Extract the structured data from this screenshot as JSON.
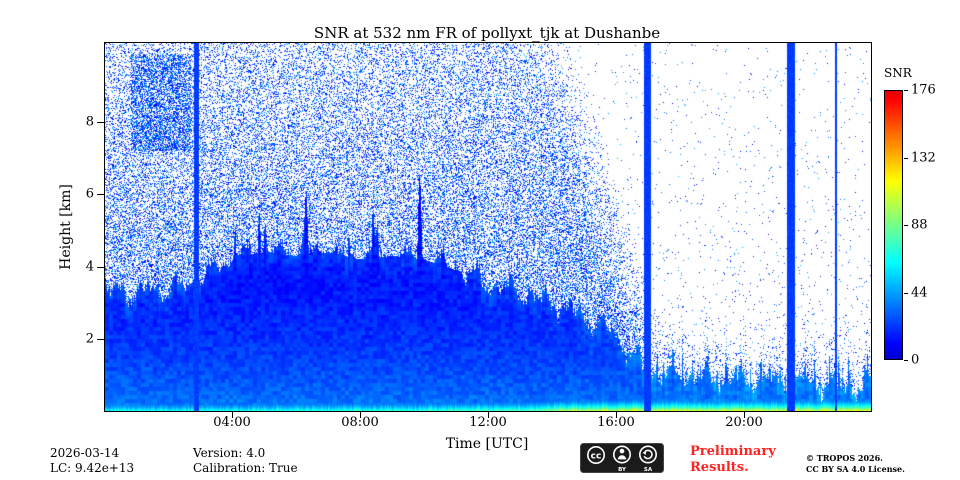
{
  "title": "SNR at 532 nm FR of pollyxt_tjk at Dushanbe",
  "axes": {
    "xlabel": "Time [UTC]",
    "ylabel": "Height [km]",
    "x_tick_labels": [
      "04:00",
      "08:00",
      "12:00",
      "16:00",
      "20:00"
    ],
    "y_tick_labels": [
      "2",
      "4",
      "6",
      "8"
    ]
  },
  "colorbar": {
    "label": "SNR",
    "tick_labels": [
      "176",
      "132",
      "88",
      "44",
      "0"
    ],
    "tick_values": [
      176,
      132,
      88,
      44,
      0
    ]
  },
  "footer": {
    "date": "2026-03-14",
    "lc": "LC: 9.42e+13",
    "version": "Version: 4.0",
    "calibration": "Calibration: True",
    "preliminary_line1": "Preliminary",
    "preliminary_line2": "Results.",
    "copyright_line1": "© TROPOS 2026.",
    "copyright_line2": "CC BY SA 4.0 License.",
    "cc_badge": {
      "cc": "cc",
      "by": "BY",
      "sa": "SA"
    }
  },
  "chart_data": {
    "type": "heatmap",
    "title": "SNR at 532 nm FR of pollyxt_tjk at Dushanbe",
    "xlabel": "Time [UTC]",
    "ylabel": "Height [km]",
    "value_label": "SNR",
    "x_range_hours": [
      0,
      24
    ],
    "y_range_km": [
      0,
      10.2
    ],
    "x_tick_hours": [
      4,
      8,
      12,
      16,
      20
    ],
    "y_tick_km": [
      2,
      4,
      6,
      8
    ],
    "value_range": [
      0,
      176
    ],
    "colorbar_ticks": [
      0,
      44,
      88,
      132,
      176
    ],
    "colormap": "jet",
    "boundary_layer_top_km": {
      "hours": [
        0,
        1,
        2,
        3,
        4,
        5,
        6,
        7,
        8,
        9,
        10,
        11,
        12,
        13,
        14,
        15,
        16,
        17,
        18,
        19,
        20,
        21,
        22,
        23,
        24
      ],
      "top_km": [
        3.3,
        3.3,
        3.4,
        3.7,
        4.3,
        4.4,
        4.3,
        4.4,
        4.2,
        4.3,
        4.2,
        3.9,
        3.6,
        3.3,
        3.0,
        2.6,
        2.1,
        1.1,
        0.95,
        0.9,
        0.85,
        0.8,
        0.75,
        0.7,
        0.7
      ]
    },
    "cloud_layer": {
      "hours": [
        4,
        11.2
      ],
      "max_top_km": 6.6
    },
    "surface_snr": {
      "hours": [
        0,
        9,
        13,
        15,
        24
      ],
      "snr": [
        66,
        74,
        85,
        108,
        112
      ]
    },
    "calibration_stripe_hours": [
      [
        2.78,
        2.95
      ],
      [
        16.9,
        17.12
      ],
      [
        21.38,
        21.62
      ],
      [
        22.86,
        22.92
      ]
    ],
    "noise": {
      "description": "Dense blue speckle noise above the aerosol layer before ~13 UTC; fades to white between ~13 and ~16.5 UTC (earlier at higher altitude) as daytime background rises; sparse speckles afterwards; dense low-level speckle below ~1.5 km after 17 UTC; near-surface high-SNR (green/yellow) layer along the bottom.",
      "fade_start_hour_at_top": 13.3,
      "fade_start_hour_at_2km": 16.2
    }
  }
}
